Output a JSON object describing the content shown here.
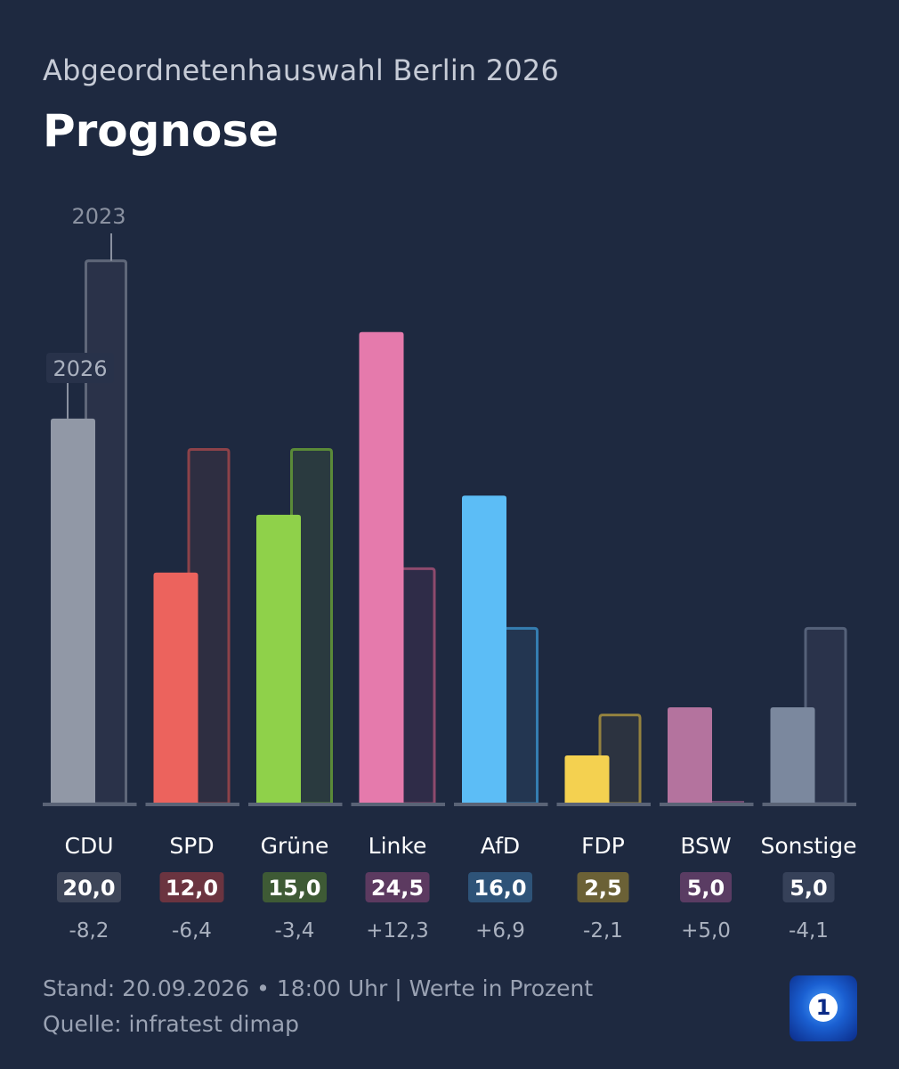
{
  "header": {
    "subtitle": "Abgeordnetenhauswahl Berlin 2026",
    "title": "Prognose"
  },
  "chart_data": {
    "type": "bar",
    "title": "Prognose",
    "subtitle": "Abgeordnetenhauswahl Berlin 2026",
    "ylim": [
      0,
      30
    ],
    "grid": false,
    "series_labels": {
      "current": "2026",
      "previous": "2023"
    },
    "categories": [
      "CDU",
      "SPD",
      "Grüne",
      "Linke",
      "AfD",
      "FDP",
      "BSW",
      "Sonstige"
    ],
    "series": [
      {
        "name": "2026",
        "values": [
          20.0,
          12.0,
          15.0,
          24.5,
          16.0,
          2.5,
          5.0,
          5.0
        ]
      },
      {
        "name": "2023",
        "values": [
          28.2,
          18.4,
          18.4,
          12.2,
          9.1,
          4.6,
          0.0,
          9.1
        ]
      }
    ],
    "value_labels": [
      "20,0",
      "12,0",
      "15,0",
      "24,5",
      "16,0",
      "2,5",
      "5,0",
      "5,0"
    ],
    "diff_labels": [
      "-8,2",
      "-6,4",
      "-3,4",
      "+12,3",
      "+6,9",
      "-2,1",
      "+5,0",
      "-4,1"
    ],
    "colors": {
      "current": [
        "#9198a6",
        "#ec635d",
        "#8fd14a",
        "#e57aac",
        "#5cbdf6",
        "#f4d150",
        "#b4739e",
        "#7b889e"
      ],
      "outline": [
        "#5f6779",
        "#8d4249",
        "#5a8a38",
        "#8e4a6d",
        "#357db0",
        "#94823f",
        "#6f4c73",
        "#556179"
      ],
      "fill_previous": [
        "#2a3249",
        "#2e2e41",
        "#2a3a3f",
        "#2f2c48",
        "#233651",
        "#2c3340",
        "#2b2e45",
        "#2a334b"
      ],
      "badge": [
        "#3e4659",
        "#6b3440",
        "#3e5a35",
        "#5c3a60",
        "#2e5378",
        "#6b6136",
        "#5a3c63",
        "#364159"
      ]
    }
  },
  "footer": {
    "stand": "Stand: 20.09.2026 • 18:00 Uhr | Werte in Prozent",
    "quelle": "Quelle: infratest dimap"
  },
  "logo": {
    "icon": "tagesschau-logo-icon",
    "glyph": "1"
  }
}
